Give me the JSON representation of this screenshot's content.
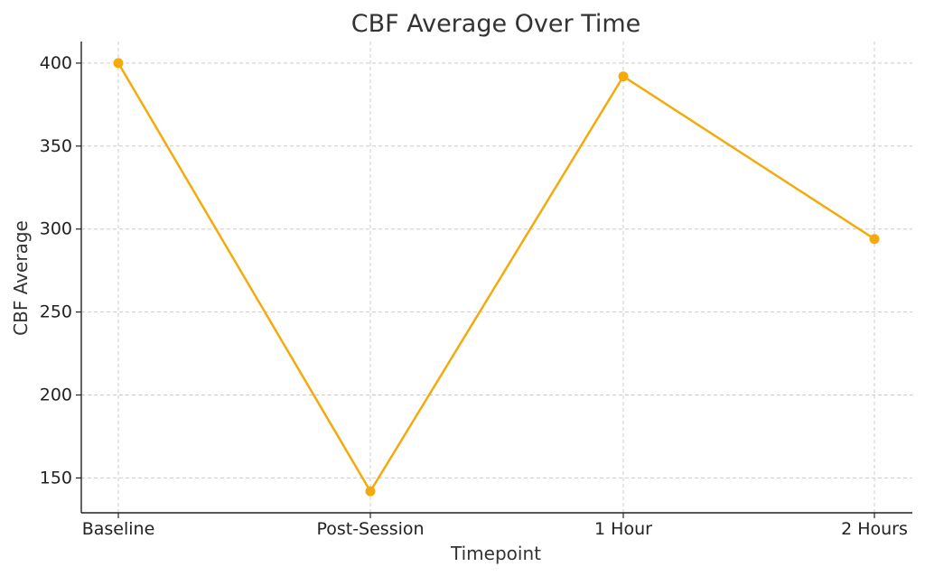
{
  "chart_data": {
    "type": "line",
    "title": "CBF Average Over Time",
    "xlabel": "Timepoint",
    "ylabel": "CBF Average",
    "categories": [
      "Baseline",
      "Post-Session",
      "1 Hour",
      "2 Hours"
    ],
    "series": [
      {
        "values": [
          400,
          142,
          392,
          294
        ],
        "color": "#F5AA0C",
        "marker": "circle"
      }
    ],
    "ylim": [
      129,
      413
    ],
    "yticks": [
      150,
      200,
      250,
      300,
      350,
      400
    ],
    "grid": true
  }
}
